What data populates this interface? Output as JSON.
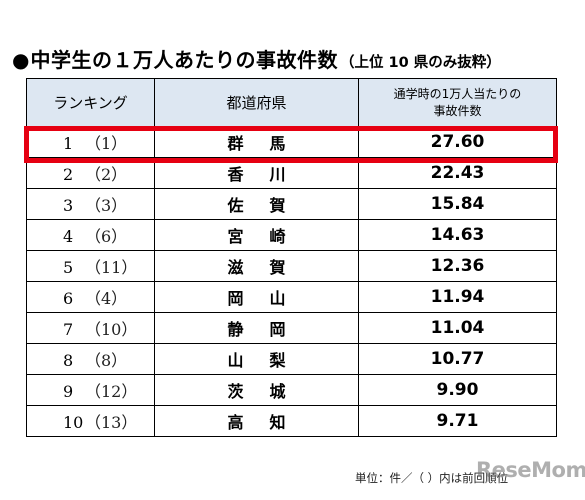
{
  "title": {
    "bullet": "●",
    "main": "中学生の１万人あたりの事故件数",
    "sub": "（上位 10 県のみ抜粋）"
  },
  "table": {
    "headers": {
      "rank": "ランキング",
      "prefecture": "都道府県",
      "rate_line1": "通学時の1万人当たりの",
      "rate_line2": "事故件数"
    },
    "rows": [
      {
        "rank": "1",
        "prev": "（1）",
        "prefecture": "群馬",
        "rate": "27.60"
      },
      {
        "rank": "2",
        "prev": "（2）",
        "prefecture": "香川",
        "rate": "22.43"
      },
      {
        "rank": "3",
        "prev": "（3）",
        "prefecture": "佐賀",
        "rate": "15.84"
      },
      {
        "rank": "4",
        "prev": "（6）",
        "prefecture": "宮崎",
        "rate": "14.63"
      },
      {
        "rank": "5",
        "prev": "（11）",
        "prefecture": "滋賀",
        "rate": "12.36"
      },
      {
        "rank": "6",
        "prev": "（4）",
        "prefecture": "岡山",
        "rate": "11.94"
      },
      {
        "rank": "7",
        "prev": "（10）",
        "prefecture": "静岡",
        "rate": "11.04"
      },
      {
        "rank": "8",
        "prev": "（8）",
        "prefecture": "山梨",
        "rate": "10.77"
      },
      {
        "rank": "9",
        "prev": "（12）",
        "prefecture": "茨城",
        "rate": "9.90"
      },
      {
        "rank": "10",
        "prev": "（13）",
        "prefecture": "高知",
        "rate": "9.71"
      }
    ]
  },
  "highlight": {
    "row_index": 0,
    "color": "#e60012"
  },
  "header_bg_color": "#dde7f2",
  "footer": {
    "unit_note": "単位：件／（ ）内は前回順位",
    "watermark": "ReseMom"
  }
}
